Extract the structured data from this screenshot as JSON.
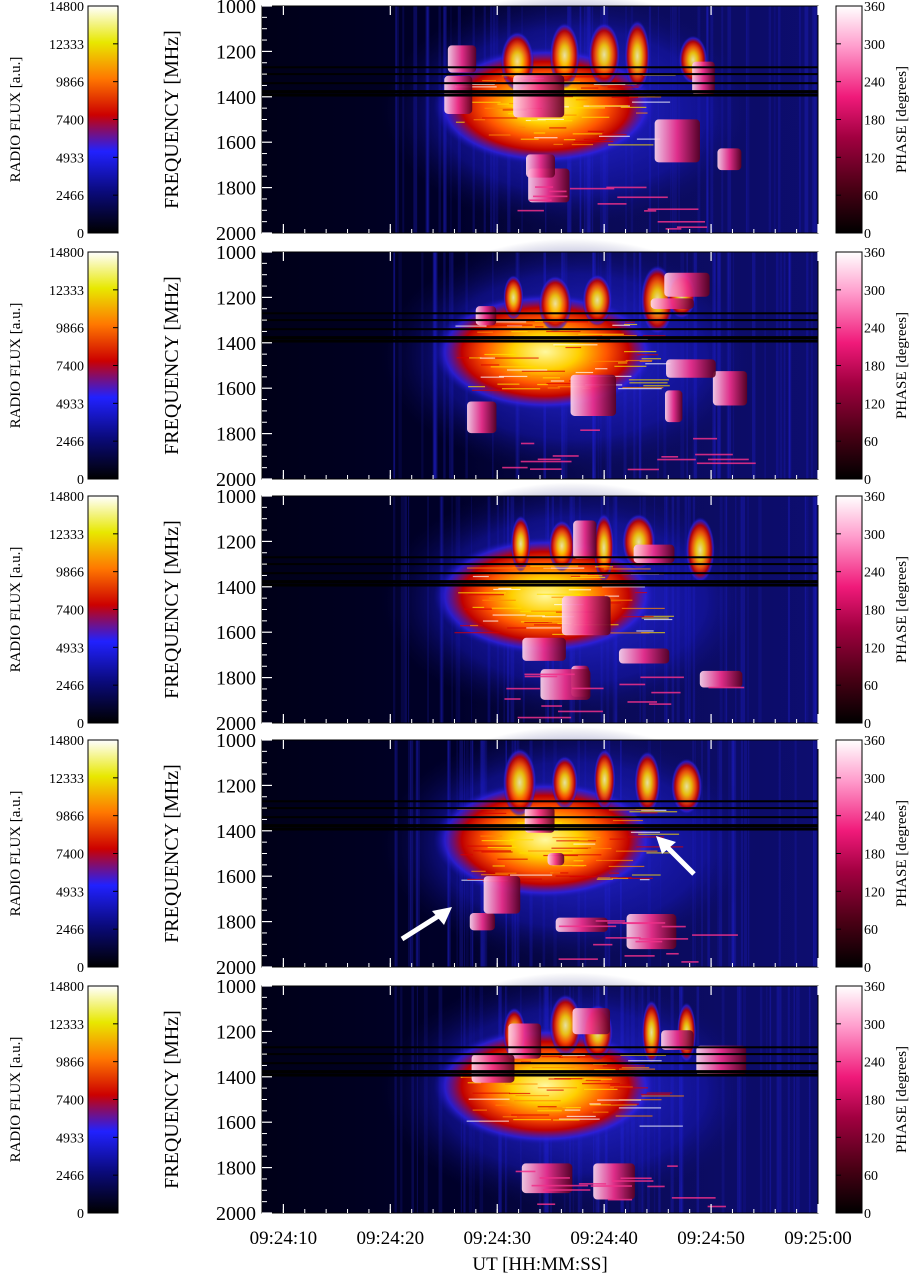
{
  "chart_data": {
    "type": "heatmap",
    "description_panels": 5,
    "xlabel": "UT [HH:MM:SS]",
    "x_ticks": [
      "09:24:10",
      "09:24:20",
      "09:24:30",
      "09:24:40",
      "09:24:50",
      "09:25:00"
    ],
    "xlim": [
      "09:24:08",
      "09:25:00"
    ],
    "ylabel": "FREQUENCY [MHz]",
    "y_ticks": [
      1000,
      1200,
      1400,
      1600,
      1800,
      2000
    ],
    "ylim": [
      2000,
      1000
    ],
    "flux_colorbar": {
      "label": "RADIO FLUX [a.u.]",
      "ticks": [
        0,
        2466,
        4933,
        7400,
        9866,
        12333,
        14800
      ],
      "colors": [
        "#000000",
        "#0a0a7a",
        "#2121ff",
        "#cc0000",
        "#ff7700",
        "#e8e800",
        "#ffffff"
      ]
    },
    "phase_colorbar": {
      "label": "PHASE [degrees]",
      "ticks": [
        0,
        60,
        120,
        180,
        240,
        300,
        360
      ],
      "colors": [
        "#000000",
        "#4a0015",
        "#a10040",
        "#f01a7a",
        "#ff9ccc",
        "#ffffff"
      ]
    },
    "panels": [
      {
        "name": "panel-1"
      },
      {
        "name": "panel-2"
      },
      {
        "name": "panel-3"
      },
      {
        "name": "panel-4",
        "arrows": 2
      },
      {
        "name": "panel-5"
      }
    ]
  }
}
